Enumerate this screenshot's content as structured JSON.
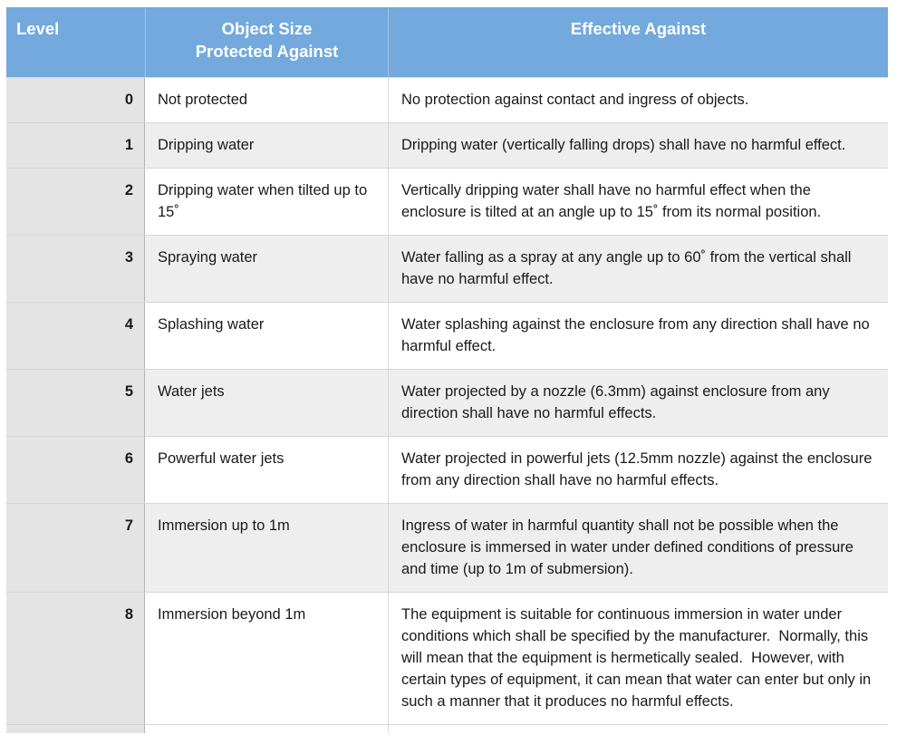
{
  "colors": {
    "header_bg": "#73a9dc",
    "header_text": "#ffffff",
    "level_column_bg": "#e4e4e4",
    "alt_row_bg": "#eeeeee",
    "row_border": "#d6d6d6",
    "body_text": "#1a1a1a"
  },
  "table": {
    "headers": [
      "Level",
      "Object Size\nProtected Against",
      "Effective Against"
    ],
    "rows": [
      {
        "level": "0",
        "protection": "Not protected",
        "effect": "No protection against contact and ingress of objects."
      },
      {
        "level": "1",
        "protection": "Dripping water",
        "effect": "Dripping water (vertically falling drops) shall have no harmful effect."
      },
      {
        "level": "2",
        "protection": "Dripping water when tilted up to 15˚",
        "effect": "Vertically dripping water shall have no harmful effect when the enclosure is tilted at an angle up to 15˚ from its normal position."
      },
      {
        "level": "3",
        "protection": "Spraying water",
        "effect": "Water falling as a spray at any angle up to 60˚ from the vertical shall have no harmful effect."
      },
      {
        "level": "4",
        "protection": "Splashing water",
        "effect": "Water splashing against the enclosure from any direction shall have no harmful effect."
      },
      {
        "level": "5",
        "protection": "Water jets",
        "effect": "Water projected by a nozzle (6.3mm) against enclosure from any direction shall have no harmful effects."
      },
      {
        "level": "6",
        "protection": "Powerful water jets",
        "effect": "Water projected in powerful jets (12.5mm nozzle) against the enclosure from any direction shall have no harmful effects."
      },
      {
        "level": "7",
        "protection": "Immersion up to 1m",
        "effect": "Ingress of water in harmful quantity shall not be possible when the enclosure is immersed in water under defined conditions of pressure and time (up to 1m of submersion)."
      },
      {
        "level": "8",
        "protection": "Immersion beyond 1m",
        "effect": "The equipment is suitable for continuous immersion in water under conditions which shall be specified by the manufacturer.  Normally, this will mean that the equipment is hermetically sealed.  However, with certain types of equipment, it can mean that water can enter but only in such a manner that it produces no harmful effects."
      }
    ]
  }
}
